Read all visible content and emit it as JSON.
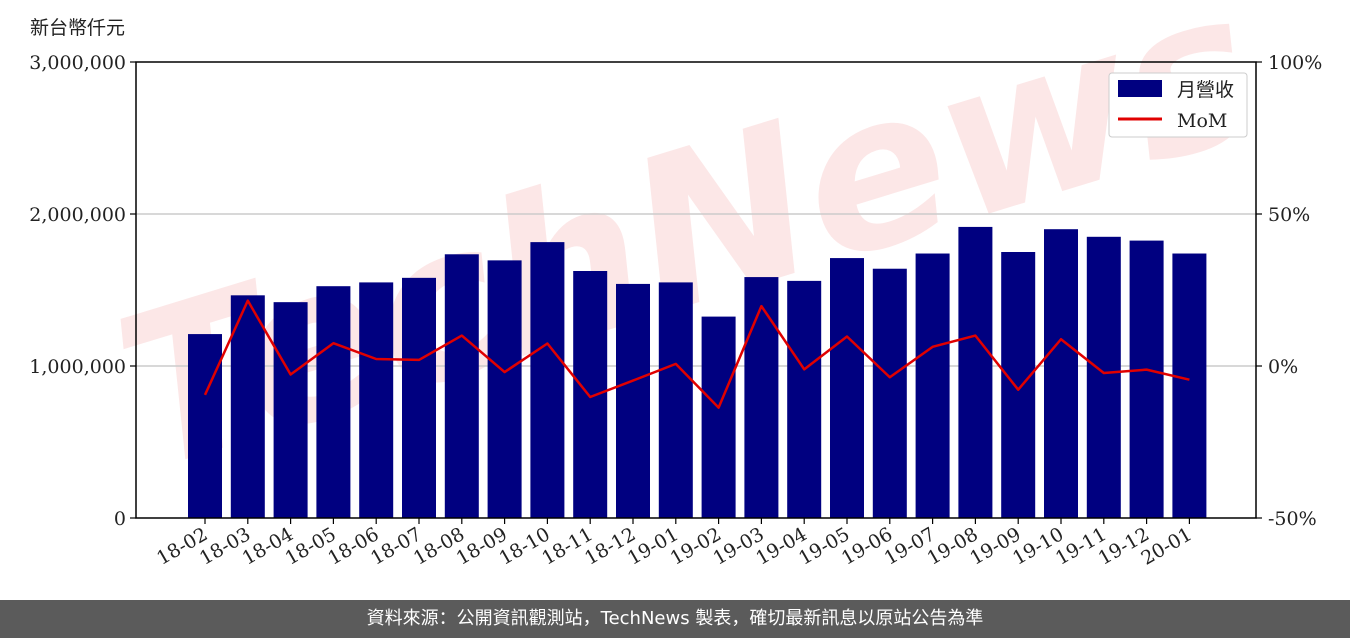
{
  "unit_label": "新台幣仟元",
  "footer": "資料來源：公開資訊觀測站，TechNews 製表，確切最新訊息以原站公告為準",
  "watermark": "TechNews",
  "colors": {
    "bar": "#000080",
    "line": "#e00000",
    "grid": "#cccccc",
    "footer_bg": "#5b5b5b"
  },
  "chart_data": {
    "type": "bar",
    "categories": [
      "18-02",
      "18-03",
      "18-04",
      "18-05",
      "18-06",
      "18-07",
      "18-08",
      "18-09",
      "18-10",
      "18-11",
      "18-12",
      "19-01",
      "19-02",
      "19-03",
      "19-04",
      "19-05",
      "19-06",
      "19-07",
      "19-08",
      "19-09",
      "19-10",
      "19-11",
      "19-12",
      "20-01"
    ],
    "series": [
      {
        "name": "月營收",
        "axis": "left",
        "type": "bar",
        "values": [
          1210000,
          1465000,
          1420000,
          1525000,
          1550000,
          1580000,
          1735000,
          1695000,
          1815000,
          1625000,
          1540000,
          1550000,
          1325000,
          1585000,
          1560000,
          1710000,
          1640000,
          1740000,
          1915000,
          1750000,
          1900000,
          1850000,
          1825000,
          1740000
        ]
      },
      {
        "name": "MoM",
        "axis": "right",
        "type": "line",
        "values": [
          -9.5,
          21.5,
          -2.8,
          7.5,
          2.3,
          2.0,
          10.0,
          -2.0,
          7.4,
          -10.2,
          -4.8,
          0.7,
          -13.7,
          19.7,
          -1.1,
          9.7,
          -3.7,
          6.3,
          10.0,
          -7.8,
          8.8,
          -2.3,
          -1.2,
          -4.5
        ]
      }
    ],
    "y_left": {
      "range": [
        0,
        3000000
      ],
      "ticks": [
        "0",
        "1,000,000",
        "2,000,000",
        "3,000,000"
      ]
    },
    "y_right": {
      "range": [
        -50,
        100
      ],
      "unit": "%",
      "ticks": [
        "-50%",
        "0%",
        "50%",
        "100%"
      ]
    },
    "grid": "horizontal",
    "legend_position": "top-right"
  }
}
